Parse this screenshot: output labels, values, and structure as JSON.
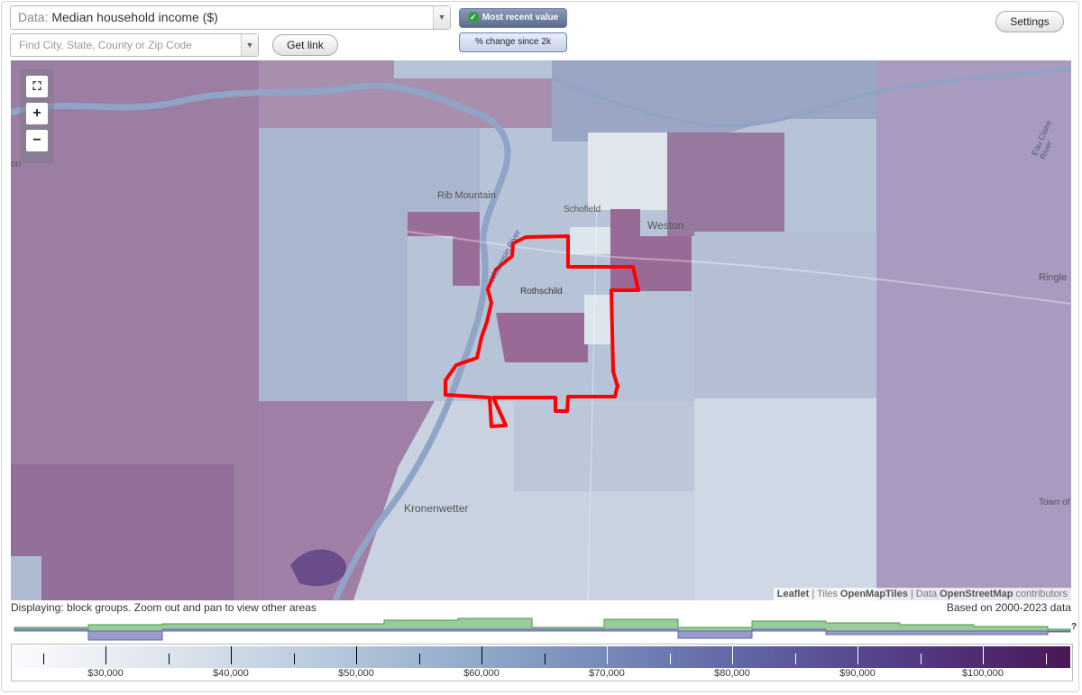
{
  "toolbar": {
    "data_label": "Data:",
    "data_value": "Median household income ($)",
    "search_placeholder": "Find City, State, County or Zip Code",
    "get_link": "Get link",
    "settings": "Settings",
    "mode_recent": "Most recent value",
    "mode_change": "% change since 2k"
  },
  "map": {
    "labels": {
      "rib_mountain": "Rib Mountain",
      "schofield": "Schofield",
      "weston": "Weston",
      "rothschild": "Rothschild",
      "wisconsin_river": "Wisconsin River",
      "ringle": "Ringle",
      "kronenwetter": "Kronenwetter",
      "town_of": "Town of",
      "eau_claire_river": "Eau Claire River",
      "edge_left": "on"
    },
    "zoom": {
      "fullscreen_icon": "fullscreen-icon",
      "zoom_in": "+",
      "zoom_out": "−"
    },
    "highlight_color": "#ff0000"
  },
  "attribution": {
    "leaflet": "Leaflet",
    "sep1": " | Tiles ",
    "tiles": "OpenMapTiles",
    "sep2": " | Data ",
    "data": "OpenStreetMap",
    "contrib": " contributors"
  },
  "captions": {
    "displaying": "Displaying: block groups. Zoom out and pan to view other areas",
    "based_on": "Based on 2000-2023 data"
  },
  "legend": {
    "help": "?",
    "labels": [
      "$30,000",
      "$40,000",
      "$50,000",
      "$60,000",
      "$70,000",
      "$80,000",
      "$90,000",
      "$100,000"
    ]
  }
}
